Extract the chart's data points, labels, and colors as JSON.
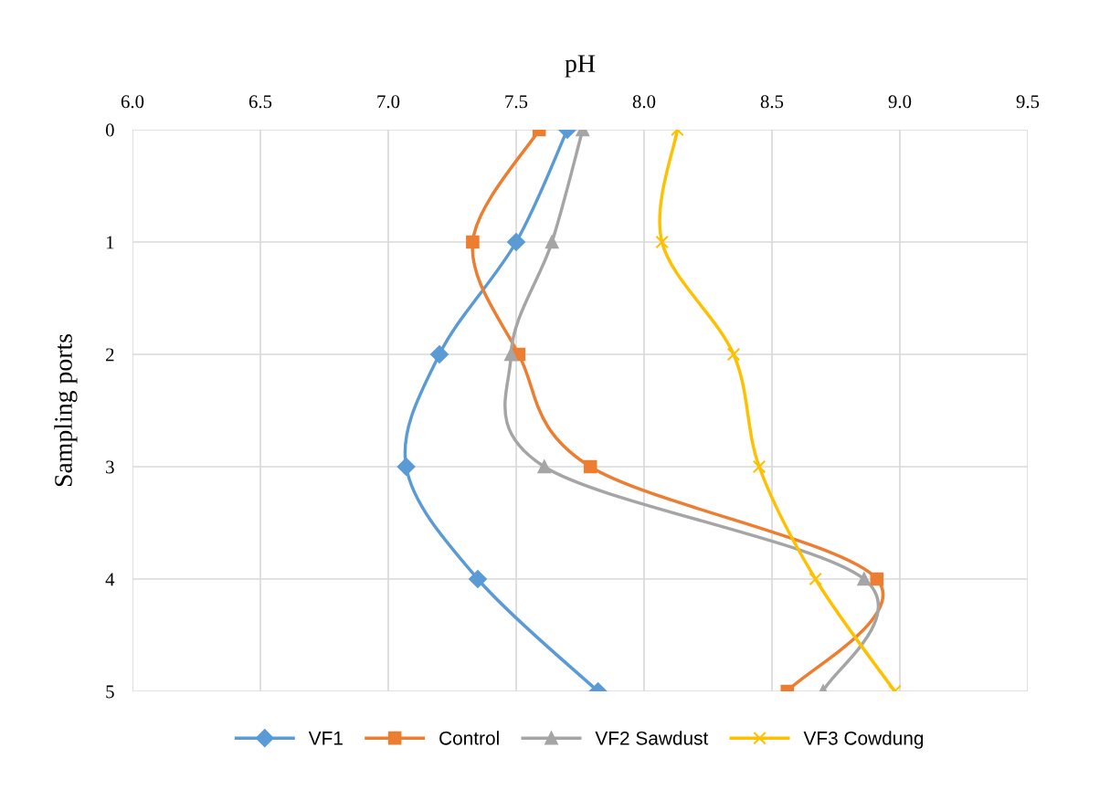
{
  "chart_data": {
    "type": "line",
    "orientation": "horizontal",
    "xlabel": "pH",
    "ylabel": "Sampling ports",
    "categories": [
      "0",
      "1",
      "2",
      "3",
      "4",
      "5"
    ],
    "xlim": [
      6.0,
      9.5
    ],
    "xticks": [
      {
        "value": 6.0,
        "label": "6.0"
      },
      {
        "value": 6.5,
        "label": "6.5"
      },
      {
        "value": 7.0,
        "label": "7.0"
      },
      {
        "value": 7.5,
        "label": "7.5"
      },
      {
        "value": 8.0,
        "label": "8.0"
      },
      {
        "value": 8.5,
        "label": "8.5"
      },
      {
        "value": 9.0,
        "label": "9.0"
      },
      {
        "value": 9.5,
        "label": "9.5"
      }
    ],
    "grid": true,
    "legend": "bottom",
    "series": [
      {
        "name": "VF1",
        "color": "#5b9bd5",
        "marker": "diamond",
        "values": [
          7.7,
          7.5,
          7.2,
          7.07,
          7.35,
          7.82
        ]
      },
      {
        "name": "Control",
        "color": "#ed7d31",
        "marker": "square",
        "values": [
          7.59,
          7.33,
          7.51,
          7.79,
          8.91,
          8.56
        ]
      },
      {
        "name": "VF2 Sawdust",
        "color": "#a5a5a5",
        "marker": "triangle",
        "values": [
          7.76,
          7.64,
          7.48,
          7.61,
          8.86,
          8.7
        ]
      },
      {
        "name": "VF3 Cowdung",
        "color": "#ffc000",
        "marker": "cross",
        "values": [
          8.13,
          8.07,
          8.35,
          8.45,
          8.67,
          8.98
        ]
      }
    ]
  }
}
